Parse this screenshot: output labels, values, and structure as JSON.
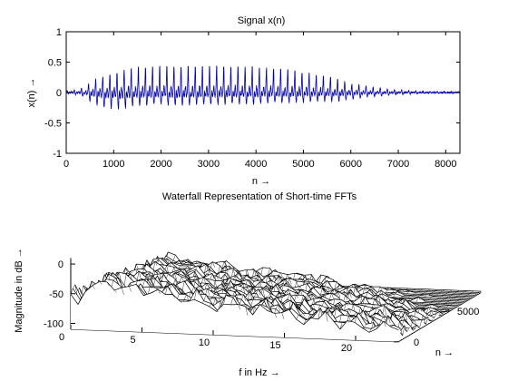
{
  "chart_data": [
    {
      "type": "line",
      "title": "Signal x(n)",
      "xlabel": "n →",
      "ylabel": "x(n) →",
      "xlim": [
        0,
        8300
      ],
      "ylim": [
        -1,
        1
      ],
      "grid": false,
      "x_ticks": [
        "0",
        "1000",
        "2000",
        "3000",
        "4000",
        "5000",
        "6000",
        "7000",
        "8000"
      ],
      "x_tick_values": [
        0,
        1000,
        2000,
        3000,
        4000,
        5000,
        6000,
        7000,
        8000
      ],
      "y_ticks": [
        "1",
        "0.5",
        "0",
        "-0.5",
        "-1"
      ],
      "y_tick_values": [
        1,
        0.5,
        0,
        -0.5,
        -1
      ],
      "line_color": "#0000aa",
      "envelope": {
        "x": [
          0,
          300,
          600,
          900,
          1200,
          1500,
          2000,
          2500,
          3000,
          3500,
          4000,
          4500,
          5000,
          5500,
          5800,
          6000,
          6500,
          7000,
          7500,
          8000,
          8300
        ],
        "max": [
          0.02,
          0.06,
          0.2,
          0.28,
          0.35,
          0.4,
          0.42,
          0.42,
          0.42,
          0.41,
          0.4,
          0.38,
          0.33,
          0.25,
          0.19,
          0.14,
          0.08,
          0.04,
          0.02,
          0.01,
          0.01
        ],
        "min": [
          -0.02,
          -0.05,
          -0.25,
          -0.34,
          -0.33,
          -0.28,
          -0.25,
          -0.26,
          -0.25,
          -0.24,
          -0.24,
          -0.21,
          -0.2,
          -0.19,
          -0.18,
          -0.14,
          -0.08,
          -0.04,
          -0.02,
          -0.01,
          -0.01
        ]
      }
    },
    {
      "type": "waterfall",
      "title": "Waterfall Representation of Short-time FFTs",
      "xlabel": "f in Hz →",
      "ylabel": "n →",
      "zlabel": "Magnitude in dB →",
      "xlim": [
        0,
        23
      ],
      "ylim": [
        0,
        8000
      ],
      "zlim": [
        -110,
        10
      ],
      "x_ticks": [
        "0",
        "5",
        "10",
        "15",
        "20"
      ],
      "x_tick_values": [
        0,
        5,
        10,
        15,
        20
      ],
      "y_ticks": [
        "0",
        "5000"
      ],
      "y_tick_values": [
        0,
        5000
      ],
      "z_ticks": [
        "0",
        "-50",
        "-100"
      ],
      "z_tick_values": [
        0,
        -50,
        -100
      ],
      "mesh_color": "#000000",
      "face_color": "#ffffff"
    }
  ]
}
